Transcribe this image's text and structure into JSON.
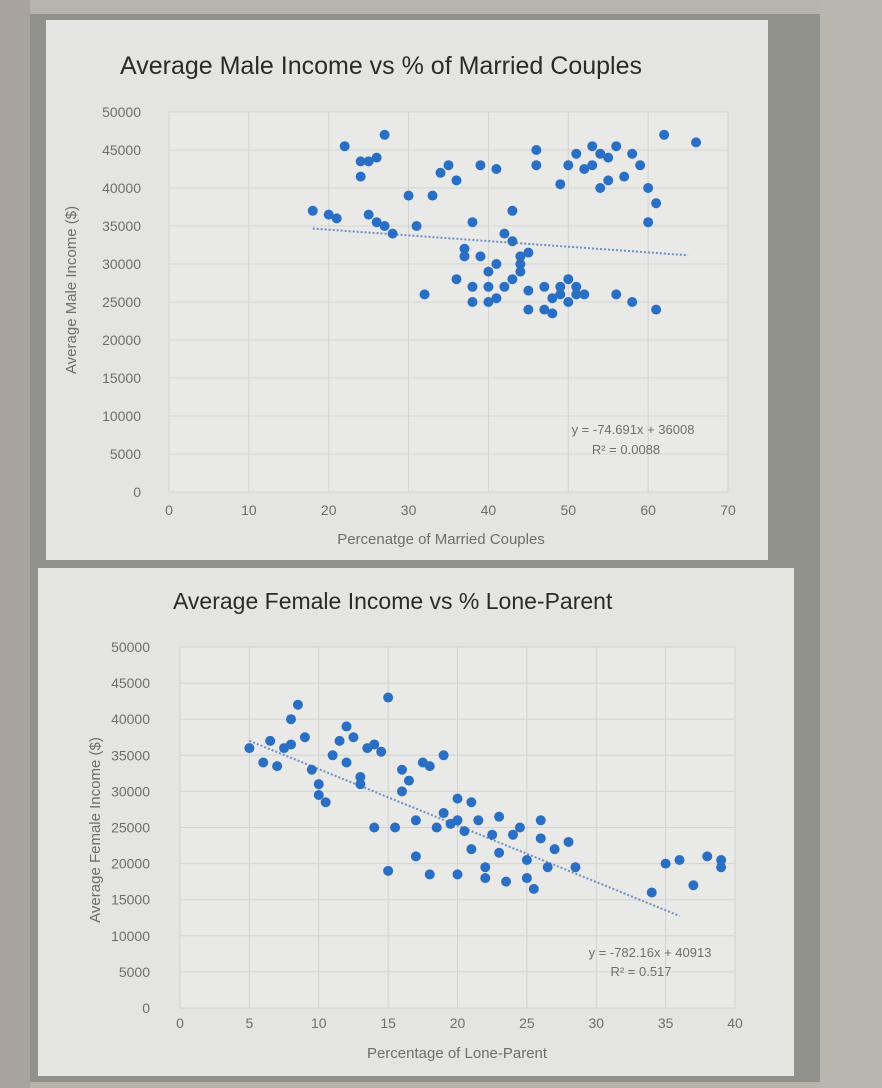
{
  "chart_data": [
    {
      "type": "scatter",
      "title": "Average Male Income vs % of Married Couples",
      "xlabel": "Percenatge of Married Couples",
      "ylabel": "Average Male Income ($)",
      "xlim": [
        0,
        70
      ],
      "ylim": [
        0,
        50000
      ],
      "xticks": [
        "0",
        "10",
        "20",
        "30",
        "40",
        "50",
        "60",
        "70"
      ],
      "yticks": [
        "0",
        "5000",
        "10000",
        "15000",
        "20000",
        "25000",
        "30000",
        "35000",
        "40000",
        "45000",
        "50000"
      ],
      "trendline": {
        "slope": -74.691,
        "intercept": 36008,
        "x_range": [
          18,
          65
        ]
      },
      "equation": "y = -74.691x + 36008",
      "r_squared": "R² = 0.0088",
      "points": [
        [
          18,
          37000
        ],
        [
          20,
          36500
        ],
        [
          21,
          36000
        ],
        [
          22,
          45500
        ],
        [
          24,
          41500
        ],
        [
          24,
          43500
        ],
        [
          25,
          43500
        ],
        [
          25,
          36500
        ],
        [
          26,
          35500
        ],
        [
          26,
          44000
        ],
        [
          27,
          47000
        ],
        [
          27,
          35000
        ],
        [
          28,
          34000
        ],
        [
          30,
          39000
        ],
        [
          32,
          26000
        ],
        [
          34,
          42000
        ],
        [
          35,
          43000
        ],
        [
          36,
          41000
        ],
        [
          36,
          28000
        ],
        [
          37,
          32000
        ],
        [
          37,
          31000
        ],
        [
          38,
          27000
        ],
        [
          38,
          25000
        ],
        [
          38,
          35500
        ],
        [
          39,
          43000
        ],
        [
          39,
          31000
        ],
        [
          40,
          27000
        ],
        [
          40,
          29000
        ],
        [
          40,
          25000
        ],
        [
          41,
          30000
        ],
        [
          41,
          42500
        ],
        [
          41,
          25500
        ],
        [
          42,
          27000
        ],
        [
          42,
          34000
        ],
        [
          43,
          33000
        ],
        [
          43,
          28000
        ],
        [
          43,
          37000
        ],
        [
          44,
          31000
        ],
        [
          44,
          30000
        ],
        [
          44,
          29000
        ],
        [
          45,
          31500
        ],
        [
          45,
          26500
        ],
        [
          45,
          24000
        ],
        [
          46,
          43000
        ],
        [
          46,
          45000
        ],
        [
          47,
          27000
        ],
        [
          47,
          24000
        ],
        [
          48,
          25500
        ],
        [
          48,
          23500
        ],
        [
          49,
          26000
        ],
        [
          49,
          27000
        ],
        [
          50,
          28000
        ],
        [
          50,
          25000
        ],
        [
          51,
          27000
        ],
        [
          51,
          26000
        ],
        [
          51,
          44500
        ],
        [
          52,
          26000
        ],
        [
          52,
          42500
        ],
        [
          53,
          45500
        ],
        [
          53,
          43000
        ],
        [
          54,
          44500
        ],
        [
          55,
          41000
        ],
        [
          55,
          44000
        ],
        [
          56,
          26000
        ],
        [
          56,
          45500
        ],
        [
          57,
          41500
        ],
        [
          58,
          25000
        ],
        [
          58,
          44500
        ],
        [
          59,
          43000
        ],
        [
          60,
          40000
        ],
        [
          60,
          35500
        ],
        [
          61,
          24000
        ],
        [
          61,
          38000
        ],
        [
          62,
          47000
        ],
        [
          66,
          46000
        ],
        [
          54,
          40000
        ],
        [
          50,
          43000
        ],
        [
          49,
          40500
        ],
        [
          33,
          39000
        ],
        [
          31,
          35000
        ]
      ]
    },
    {
      "type": "scatter",
      "title": "Average Female Income vs % Lone-Parent",
      "xlabel": "Percentage of Lone-Parent",
      "ylabel": "Average Female Income ($)",
      "xlim": [
        0,
        40
      ],
      "ylim": [
        0,
        50000
      ],
      "xticks": [
        "0",
        "5",
        "10",
        "15",
        "20",
        "25",
        "30",
        "35",
        "40"
      ],
      "yticks": [
        "0",
        "5000",
        "10000",
        "15000",
        "20000",
        "25000",
        "30000",
        "35000",
        "40000",
        "45000",
        "50000"
      ],
      "trendline": {
        "slope": -782.16,
        "intercept": 40913,
        "x_range": [
          5,
          36
        ]
      },
      "equation": "y = -782.16x + 40913",
      "r_squared": "R² = 0.517",
      "points": [
        [
          5,
          36000
        ],
        [
          6,
          34000
        ],
        [
          6.5,
          37000
        ],
        [
          7,
          33500
        ],
        [
          7.5,
          36000
        ],
        [
          8,
          40000
        ],
        [
          8,
          36500
        ],
        [
          8.5,
          42000
        ],
        [
          9,
          37500
        ],
        [
          9.5,
          33000
        ],
        [
          10,
          31000
        ],
        [
          10,
          29500
        ],
        [
          10.5,
          28500
        ],
        [
          11,
          35000
        ],
        [
          11.5,
          37000
        ],
        [
          12,
          34000
        ],
        [
          12,
          39000
        ],
        [
          12.5,
          37500
        ],
        [
          13,
          31000
        ],
        [
          13,
          32000
        ],
        [
          13.5,
          36000
        ],
        [
          14,
          25000
        ],
        [
          14,
          36500
        ],
        [
          14.5,
          35500
        ],
        [
          15,
          43000
        ],
        [
          15,
          19000
        ],
        [
          15.5,
          25000
        ],
        [
          16,
          33000
        ],
        [
          16,
          30000
        ],
        [
          16.5,
          31500
        ],
        [
          17,
          26000
        ],
        [
          17,
          21000
        ],
        [
          17.5,
          34000
        ],
        [
          18,
          18500
        ],
        [
          18,
          33500
        ],
        [
          18.5,
          25000
        ],
        [
          19,
          27000
        ],
        [
          19,
          35000
        ],
        [
          19.5,
          25500
        ],
        [
          20,
          26000
        ],
        [
          20,
          18500
        ],
        [
          20.5,
          24500
        ],
        [
          21,
          22000
        ],
        [
          21.5,
          26000
        ],
        [
          22,
          19500
        ],
        [
          22,
          18000
        ],
        [
          22.5,
          24000
        ],
        [
          23,
          26500
        ],
        [
          23,
          21500
        ],
        [
          23.5,
          17500
        ],
        [
          24,
          24000
        ],
        [
          24.5,
          25000
        ],
        [
          25,
          20500
        ],
        [
          25,
          18000
        ],
        [
          25.5,
          16500
        ],
        [
          26,
          26000
        ],
        [
          26,
          23500
        ],
        [
          26.5,
          19500
        ],
        [
          27,
          22000
        ],
        [
          28,
          23000
        ],
        [
          28.5,
          19500
        ],
        [
          34,
          16000
        ],
        [
          35,
          20000
        ],
        [
          36,
          20500
        ],
        [
          37,
          17000
        ],
        [
          39,
          20500
        ],
        [
          39,
          19500
        ],
        [
          38,
          21000
        ],
        [
          20,
          29000
        ],
        [
          21,
          28500
        ]
      ]
    }
  ]
}
